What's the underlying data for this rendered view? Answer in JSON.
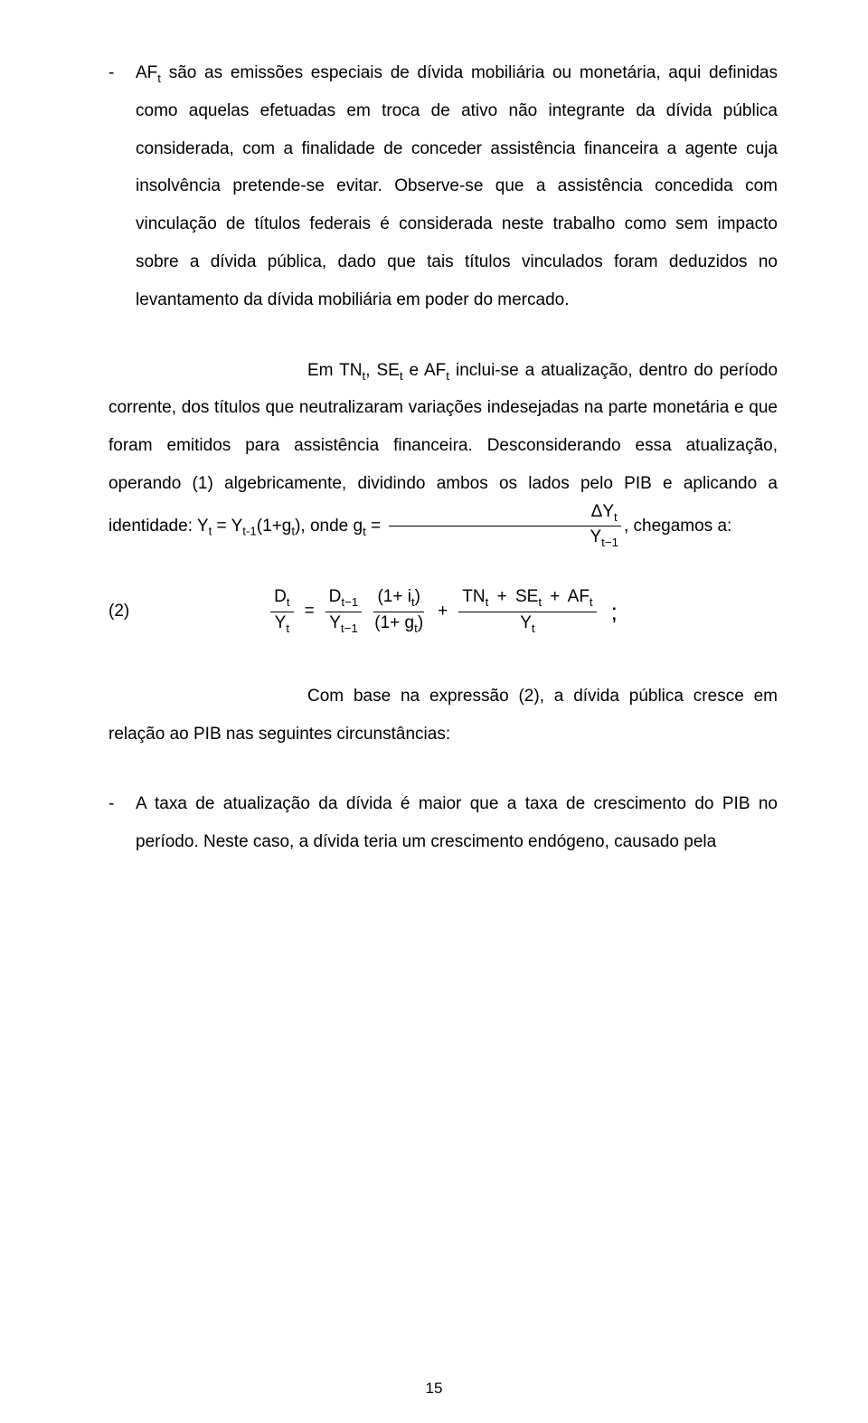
{
  "bullet1": {
    "dash": "-",
    "pre": "AF",
    "sub": "t",
    "text": " são as emissões especiais de dívida mobiliária ou monetária, aqui definidas como aquelas efetuadas em troca de ativo não integrante da dívida pública considerada, com a finalidade de conceder assistência financeira a agente cuja insolvência pretende-se evitar. Observe-se que a assistência concedida com vinculação de títulos federais é considerada neste trabalho como sem impacto sobre a dívida pública, dado que tais títulos vinculados foram deduzidos no levantamento da dívida mobiliária em poder do mercado."
  },
  "para2": {
    "a": "Em TN",
    "b": ", SE",
    "c": " e AF",
    "d": " inclui-se a atualização, dentro do período corrente, dos títulos que neutralizaram variações indesejadas na parte monetária e que foram emitidos para assistência financeira. Desconsiderando essa atualização, operando (1) algebricamente, dividindo ambos os lados pelo PIB e aplicando a identidade: Y",
    "e": " = Y",
    "f": "(1+g",
    "g": "),  onde  ",
    "h": ",  chegamos a:",
    "sub_t": "t",
    "sub_t1": "t-1",
    "sub_t_minus_1": "t−1",
    "g_var": "g",
    "eq_sign": " = ",
    "delta_y": "ΔY",
    "y": "Y"
  },
  "eq2": {
    "num": "(2)",
    "D": "D",
    "Y": "Y",
    "t": "t",
    "t1": "t−1",
    "one_plus_i": "(1+ i",
    "one_plus_g": "(1+ g",
    "close": ")",
    "eq": "=",
    "plus": "+",
    "TN": "TN",
    "SE": "SE",
    "AF": "AF",
    "semicolon": ";"
  },
  "para3": "Com base na expressão (2), a dívida pública cresce em relação ao PIB nas seguintes circunstâncias:",
  "bullet2": {
    "dash": "-",
    "text": "A taxa de atualização da dívida é maior que a taxa de crescimento do PIB no período. Neste caso, a dívida teria um crescimento endógeno, causado pela"
  },
  "page_num": "15"
}
